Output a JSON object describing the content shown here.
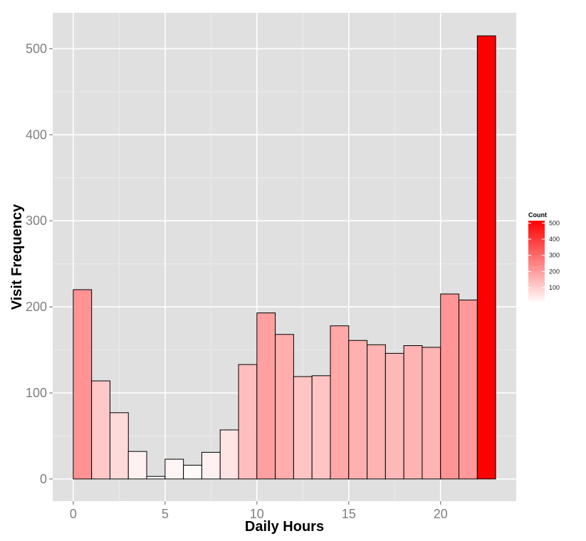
{
  "chart_data": {
    "type": "bar",
    "xlabel": "Daily Hours",
    "ylabel": "Visit Frequency",
    "x": [
      0,
      1,
      2,
      3,
      4,
      5,
      6,
      7,
      8,
      9,
      10,
      11,
      12,
      13,
      14,
      15,
      16,
      17,
      18,
      19,
      20,
      21,
      22
    ],
    "values": [
      220,
      114,
      77,
      32,
      3,
      23,
      16,
      31,
      57,
      133,
      193,
      168,
      119,
      120,
      178,
      161,
      156,
      146,
      155,
      153,
      215,
      208,
      515
    ],
    "xlim": [
      -1.12,
      24.12
    ],
    "ylim": [
      -25.75,
      541.75
    ],
    "xticks": [
      0,
      5,
      10,
      15,
      20
    ],
    "yticks": [
      0,
      100,
      200,
      300,
      400,
      500
    ],
    "grid": true,
    "legend": {
      "title": "Count",
      "position": "right",
      "ticks": [
        100,
        200,
        300,
        400,
        500
      ],
      "low_color": "#ffffff",
      "high_color": "#ff0000",
      "range": [
        3,
        515
      ]
    },
    "colors": {
      "panel_bg": "#e0e0e0",
      "grid_major": "#ffffff",
      "grid_minor": "#ececec",
      "bar_outline": "#000000"
    }
  }
}
